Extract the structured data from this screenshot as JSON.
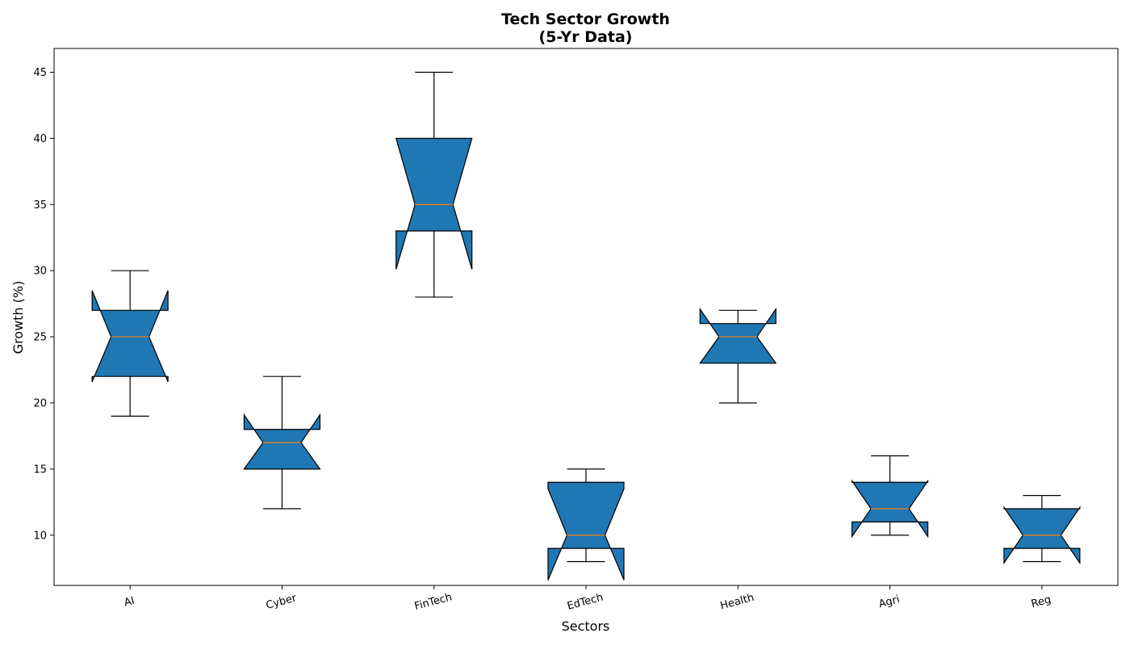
{
  "chart_data": {
    "type": "box",
    "notched": true,
    "title": "Tech Sector Growth",
    "subtitle": "(5-Yr Data)",
    "xlabel": "Sectors",
    "ylabel": "Growth (%)",
    "ylim": [
      6.2,
      46.8
    ],
    "yticks": [
      10,
      15,
      20,
      25,
      30,
      35,
      40,
      45
    ],
    "grid": false,
    "box_color": "#1f77b4",
    "median_color": "#ff7f0e",
    "categories": [
      "AI",
      "Cyber",
      "FinTech",
      "EdTech",
      "Health",
      "Agri",
      "Reg"
    ],
    "boxes": [
      {
        "whisker_low": 19,
        "q1": 22,
        "median": 25,
        "q3": 27,
        "whisker_high": 30,
        "notch_low": 21.6,
        "notch_high": 28.5
      },
      {
        "whisker_low": 12,
        "q1": 15,
        "median": 17,
        "q3": 18,
        "whisker_high": 22,
        "notch_low": 15,
        "notch_high": 19.1
      },
      {
        "whisker_low": 28,
        "q1": 33,
        "median": 35,
        "q3": 40,
        "whisker_high": 45,
        "notch_low": 30.1,
        "notch_high": 40
      },
      {
        "whisker_low": 8,
        "q1": 9,
        "median": 10,
        "q3": 14,
        "whisker_high": 15,
        "notch_low": 6.6,
        "notch_high": 13.5
      },
      {
        "whisker_low": 20,
        "q1": 23,
        "median": 25,
        "q3": 26,
        "whisker_high": 27,
        "notch_low": 23,
        "notch_high": 27.1
      },
      {
        "whisker_low": 10,
        "q1": 11,
        "median": 12,
        "q3": 14,
        "whisker_high": 16,
        "notch_low": 9.9,
        "notch_high": 14.1
      },
      {
        "whisker_low": 8,
        "q1": 9,
        "median": 10,
        "q3": 12,
        "whisker_high": 13,
        "notch_low": 7.9,
        "notch_high": 12.1
      }
    ]
  }
}
